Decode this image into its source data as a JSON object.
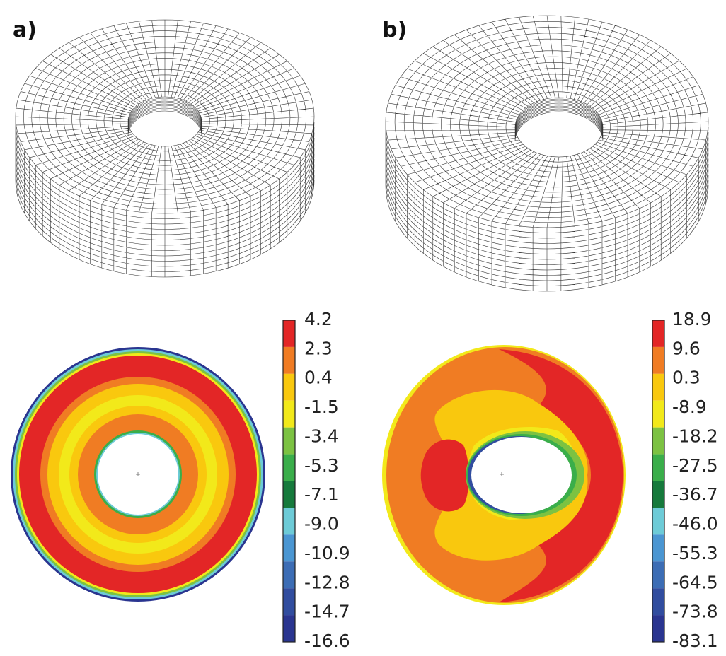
{
  "panels": [
    {
      "label": "a)",
      "colorbar": {
        "labels": [
          "4.2",
          "2.3",
          "0.4",
          "-1.5",
          "-3.4",
          "-5.3",
          "-7.1",
          "-9.0",
          "-10.9",
          "-12.8",
          "-14.7",
          "-16.6"
        ]
      }
    },
    {
      "label": "b)",
      "colorbar": {
        "labels": [
          "18.9",
          "9.6",
          "0.3",
          "-8.9",
          "-18.2",
          "-27.5",
          "-36.7",
          "-46.0",
          "-55.3",
          "-64.5",
          "-73.8",
          "-83.1"
        ]
      }
    }
  ],
  "colorbar_colors": [
    "#e32626",
    "#f07c23",
    "#f9c80e",
    "#f2e91a",
    "#7cc242",
    "#3aae4a",
    "#167a3c",
    "#6dcbd7",
    "#4a96d2",
    "#3c6db5",
    "#314d9f",
    "#2a3590"
  ]
}
